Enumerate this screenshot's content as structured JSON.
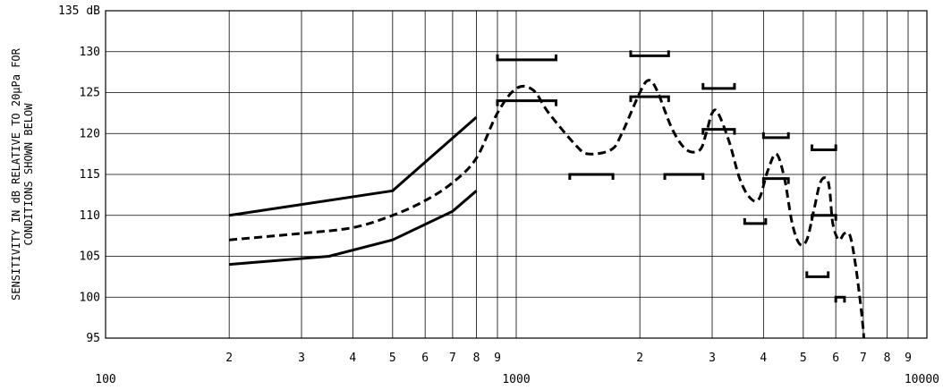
{
  "chart_data": {
    "type": "line",
    "ylabel_lines": [
      "SENSITIVITY IN dB RELATIVE TO 20µPa FOR",
      "CONDITIONS SHOWN BELOW"
    ],
    "xscale": "log",
    "xlim": [
      100,
      10000
    ],
    "ylim": [
      95,
      135
    ],
    "grid": true,
    "y_ticks": [
      {
        "value": 135,
        "label": "135 dB"
      },
      {
        "value": 130,
        "label": "130"
      },
      {
        "value": 125,
        "label": "125"
      },
      {
        "value": 120,
        "label": "120"
      },
      {
        "value": 115,
        "label": "115"
      },
      {
        "value": 110,
        "label": "110"
      },
      {
        "value": 105,
        "label": "105"
      },
      {
        "value": 100,
        "label": "100"
      },
      {
        "value": 95,
        "label": "95"
      }
    ],
    "x_minor_ticks": [
      {
        "value": 200,
        "label": "2"
      },
      {
        "value": 300,
        "label": "3"
      },
      {
        "value": 400,
        "label": "4"
      },
      {
        "value": 500,
        "label": "5"
      },
      {
        "value": 600,
        "label": "6"
      },
      {
        "value": 700,
        "label": "7"
      },
      {
        "value": 800,
        "label": "8"
      },
      {
        "value": 900,
        "label": "9"
      },
      {
        "value": 2000,
        "label": "2"
      },
      {
        "value": 3000,
        "label": "3"
      },
      {
        "value": 4000,
        "label": "4"
      },
      {
        "value": 5000,
        "label": "5"
      },
      {
        "value": 6000,
        "label": "6"
      },
      {
        "value": 7000,
        "label": "7"
      },
      {
        "value": 8000,
        "label": "8"
      },
      {
        "value": 9000,
        "label": "9"
      }
    ],
    "x_major_ticks": [
      {
        "value": 100,
        "label": "100"
      },
      {
        "value": 1000,
        "label": "1000"
      },
      {
        "value": 10000,
        "label": "10000"
      }
    ],
    "series": [
      {
        "style": "solid",
        "x": [
          200,
          500,
          800
        ],
        "y": [
          110,
          113,
          122
        ]
      },
      {
        "style": "solid",
        "x": [
          200,
          350,
          500,
          700,
          800
        ],
        "y": [
          104,
          105,
          107,
          110.5,
          113
        ]
      },
      {
        "style": "dashed",
        "x": [
          200,
          300,
          400,
          500,
          600,
          700,
          800,
          900,
          1000,
          1100,
          1200,
          1400,
          1500,
          1700,
          1800,
          2000,
          2100,
          2200,
          2400,
          2600,
          2800,
          2900,
          3000,
          3100,
          3300,
          3500,
          3700,
          3900,
          4100,
          4300,
          4500,
          4700,
          4900,
          5100,
          5300,
          5500,
          5700,
          5800,
          5900,
          6100,
          6300,
          6500,
          6700,
          6900,
          7000,
          7020
        ],
        "y": [
          107,
          107.8,
          108.5,
          110,
          111.8,
          114,
          117,
          122.5,
          125.5,
          125.3,
          122.5,
          118.5,
          117.5,
          118,
          119.8,
          125,
          126.5,
          125.3,
          120.5,
          118,
          118,
          120,
          122.5,
          122.5,
          119,
          114.5,
          112.2,
          112,
          115.5,
          117.5,
          114.5,
          109,
          106.5,
          107,
          110.5,
          114,
          114.5,
          113,
          109,
          107,
          107.8,
          107.5,
          104,
          99,
          96,
          95
        ]
      },
      {
        "style": "bracket",
        "segments": [
          {
            "x1": 900,
            "x2": 1250,
            "y": 129,
            "tick": -1
          },
          {
            "x1": 900,
            "x2": 1250,
            "y": 124,
            "tick": 1
          },
          {
            "x1": 1350,
            "x2": 1720,
            "y": 115,
            "tick": 1
          },
          {
            "x1": 1900,
            "x2": 2350,
            "y": 129.5,
            "tick": -1
          },
          {
            "x1": 1900,
            "x2": 2350,
            "y": 124.5,
            "tick": 1
          },
          {
            "x1": 2300,
            "x2": 2850,
            "y": 115,
            "tick": 1
          },
          {
            "x1": 2850,
            "x2": 3400,
            "y": 125.5,
            "tick": -1
          },
          {
            "x1": 2850,
            "x2": 3400,
            "y": 120.5,
            "tick": 1
          },
          {
            "x1": 3600,
            "x2": 4050,
            "y": 109,
            "tick": -1
          },
          {
            "x1": 4000,
            "x2": 4600,
            "y": 119.5,
            "tick": -1
          },
          {
            "x1": 4000,
            "x2": 4600,
            "y": 114.5,
            "tick": 1
          },
          {
            "x1": 5100,
            "x2": 5750,
            "y": 102.5,
            "tick": -1
          },
          {
            "x1": 5250,
            "x2": 6000,
            "y": 118,
            "tick": -1
          },
          {
            "x1": 5250,
            "x2": 6000,
            "y": 110,
            "tick": 1
          },
          {
            "x1": 6000,
            "x2": 6300,
            "y": 100,
            "tick": 1
          }
        ]
      }
    ]
  }
}
